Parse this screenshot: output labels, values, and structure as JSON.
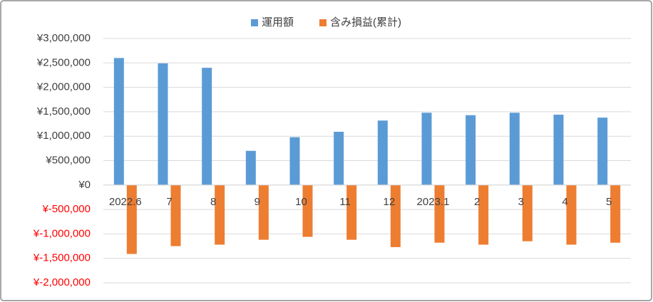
{
  "chart_data": {
    "type": "bar",
    "categories": [
      "2022.6",
      "7",
      "8",
      "9",
      "10",
      "11",
      "12",
      "2023.1",
      "2",
      "3",
      "4",
      "5"
    ],
    "series": [
      {
        "name": "運用額",
        "color": "#5b9bd5",
        "values": [
          2600000,
          2490000,
          2400000,
          700000,
          980000,
          1090000,
          1320000,
          1480000,
          1430000,
          1480000,
          1440000,
          1380000
        ]
      },
      {
        "name": "含み損益(累計)",
        "color": "#ed7d31",
        "values": [
          -1410000,
          -1250000,
          -1220000,
          -1120000,
          -1060000,
          -1120000,
          -1270000,
          -1180000,
          -1220000,
          -1150000,
          -1220000,
          -1180000
        ]
      }
    ],
    "ylim": [
      -2000000,
      3000000
    ],
    "yticks": [
      {
        "value": -2000000,
        "label": "¥-2,000,000"
      },
      {
        "value": -1500000,
        "label": "¥-1,500,000"
      },
      {
        "value": -1000000,
        "label": "¥-1,000,000"
      },
      {
        "value": -500000,
        "label": "¥-500,000"
      },
      {
        "value": 0,
        "label": "¥0"
      },
      {
        "value": 500000,
        "label": "¥500,000"
      },
      {
        "value": 1000000,
        "label": "¥1,000,000"
      },
      {
        "value": 1500000,
        "label": "¥1,500,000"
      },
      {
        "value": 2000000,
        "label": "¥2,000,000"
      },
      {
        "value": 2500000,
        "label": "¥2,500,000"
      },
      {
        "value": 3000000,
        "label": "¥3,000,000"
      }
    ],
    "negative_tick_color": "#ff0000",
    "grid": true,
    "legend": "top"
  }
}
